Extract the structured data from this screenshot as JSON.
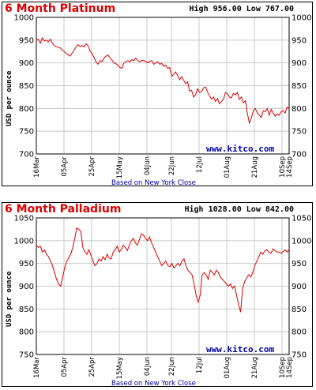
{
  "chart_data": [
    {
      "type": "line",
      "title": "6 Month Platinum",
      "high_label": "High 956.00",
      "low_label": "Low 767.00",
      "ylabel": "USD per ounce",
      "watermark": "www.kitco.com",
      "note": "Based on New York Close",
      "ylim": [
        700,
        1000
      ],
      "yticks": [
        700,
        750,
        800,
        850,
        900,
        950,
        1000
      ],
      "xticks": [
        "16Mar",
        "05Apr",
        "25Apr",
        "15May",
        "04Jun",
        "22Jun",
        "12Jul",
        "01Aug",
        "21Aug",
        "10Sep",
        "14Sep"
      ],
      "grid": true,
      "line_color": "#e00000",
      "y": [
        950,
        952,
        943,
        955,
        948,
        950,
        946,
        952,
        944,
        938,
        936,
        934,
        933,
        928,
        925,
        920,
        918,
        915,
        922,
        928,
        935,
        940,
        936,
        938,
        935,
        942,
        938,
        926,
        920,
        912,
        902,
        897,
        905,
        903,
        910,
        915,
        917,
        912,
        906,
        900,
        898,
        895,
        890,
        888,
        900,
        903,
        905,
        902,
        907,
        905,
        910,
        905,
        902,
        906,
        905,
        903,
        900,
        904,
        905,
        897,
        900,
        902,
        897,
        899,
        892,
        895,
        888,
        890,
        870,
        875,
        880,
        872,
        863,
        870,
        862,
        855,
        858,
        838,
        840,
        825,
        830,
        843,
        835,
        837,
        845,
        847,
        836,
        828,
        820,
        825,
        815,
        822,
        810,
        815,
        820,
        835,
        832,
        825,
        823,
        833,
        830,
        835,
        820,
        825,
        812,
        817,
        790,
        768,
        778,
        795,
        800,
        790,
        785,
        780,
        795,
        793,
        800,
        785,
        798,
        790,
        783,
        788,
        785,
        793,
        795,
        790,
        803,
        800
      ]
    },
    {
      "type": "line",
      "title": "6 Month Palladium",
      "high_label": "High 1028.00",
      "low_label": "Low 842.00",
      "ylabel": "USD per ounce",
      "watermark": "www.kitco.com",
      "note": "Based on New York Close",
      "ylim": [
        750,
        1050
      ],
      "yticks": [
        750,
        800,
        850,
        900,
        950,
        1000,
        1050
      ],
      "xticks": [
        "16Mar",
        "05Apr",
        "25Apr",
        "15May",
        "04Jun",
        "22Jun",
        "12Jul",
        "01Aug",
        "21Aug",
        "10Sep",
        "14Sep"
      ],
      "grid": true,
      "line_color": "#e00000",
      "y": [
        990,
        985,
        988,
        975,
        980,
        970,
        965,
        955,
        945,
        930,
        915,
        905,
        900,
        920,
        940,
        955,
        962,
        970,
        985,
        1005,
        1028,
        1025,
        1020,
        985,
        975,
        970,
        980,
        968,
        955,
        945,
        950,
        960,
        955,
        965,
        958,
        970,
        962,
        960,
        975,
        980,
        988,
        975,
        980,
        990,
        985,
        978,
        990,
        1000,
        1005,
        995,
        990,
        1003,
        1015,
        1012,
        1005,
        1000,
        1008,
        995,
        985,
        975,
        965,
        955,
        945,
        950,
        955,
        945,
        943,
        950,
        940,
        945,
        950,
        945,
        955,
        960,
        945,
        935,
        930,
        925,
        905,
        880,
        865,
        880,
        925,
        930,
        925,
        915,
        935,
        930,
        925,
        935,
        930,
        920,
        915,
        910,
        905,
        900,
        905,
        895,
        900,
        880,
        860,
        843,
        895,
        910,
        918,
        925,
        920,
        930,
        945,
        955,
        965,
        975,
        970,
        978,
        980,
        975,
        972,
        982,
        978,
        975,
        975,
        972,
        976,
        980,
        975,
        980
      ]
    }
  ]
}
